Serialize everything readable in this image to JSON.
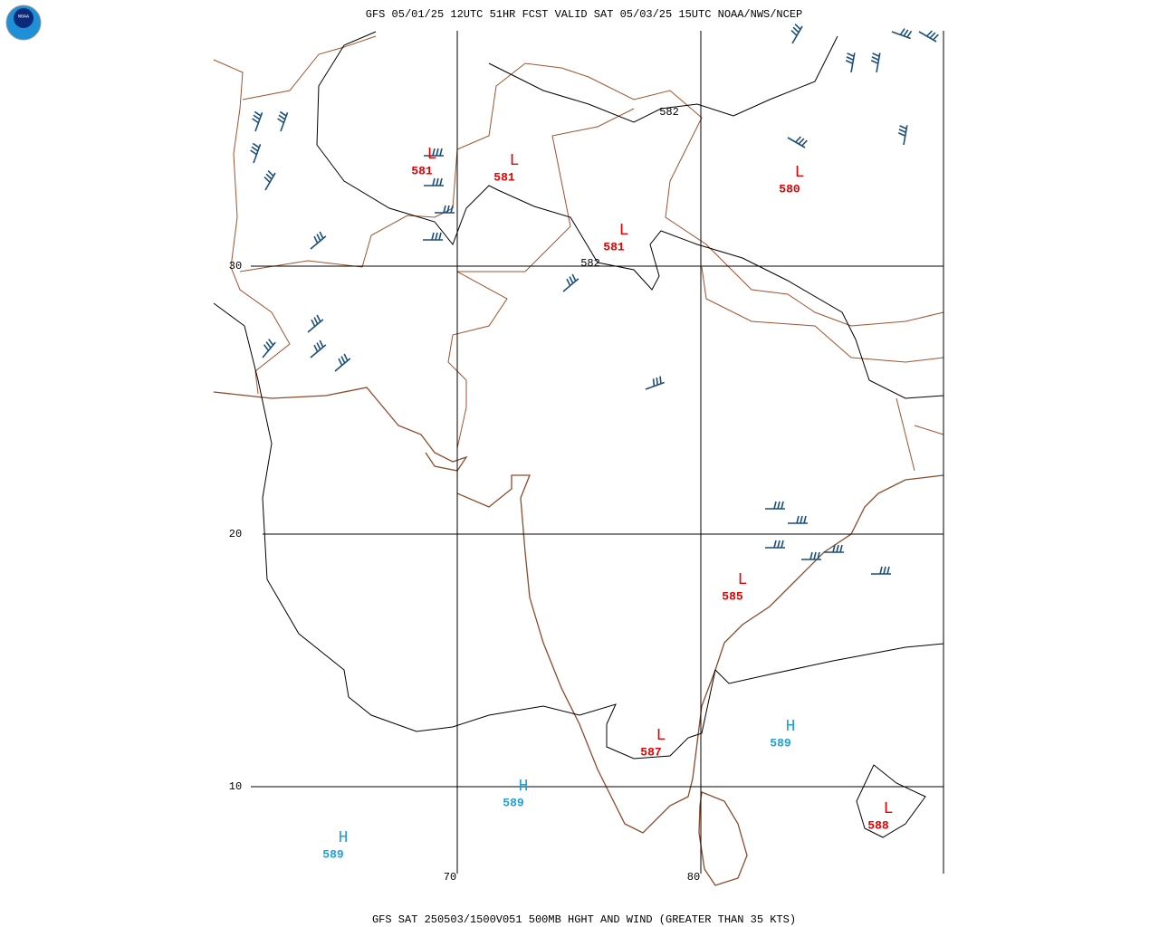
{
  "header": "GFS 05/01/25 12UTC 51HR FCST VALID SAT 05/03/25 15UTC NOAA/NWS/NCEP",
  "footer": "GFS SAT 250503/1500V051 500MB HGHT AND WIND (GREATER THAN 35 KTS)",
  "logo": "NOAA",
  "latitudes": [
    30,
    20,
    10
  ],
  "longitudes": [
    70,
    80
  ],
  "contour_labels": [
    582,
    582
  ],
  "centers": [
    {
      "symbol": "L",
      "value": 581
    },
    {
      "symbol": "L",
      "value": 581
    },
    {
      "symbol": "L",
      "value": 581
    },
    {
      "symbol": "L",
      "value": 580
    },
    {
      "symbol": "L",
      "value": 585
    },
    {
      "symbol": "L",
      "value": 587
    },
    {
      "symbol": "L",
      "value": 588
    },
    {
      "symbol": "H",
      "value": 589
    },
    {
      "symbol": "H",
      "value": 589
    },
    {
      "symbol": "H",
      "value": 589
    }
  ]
}
